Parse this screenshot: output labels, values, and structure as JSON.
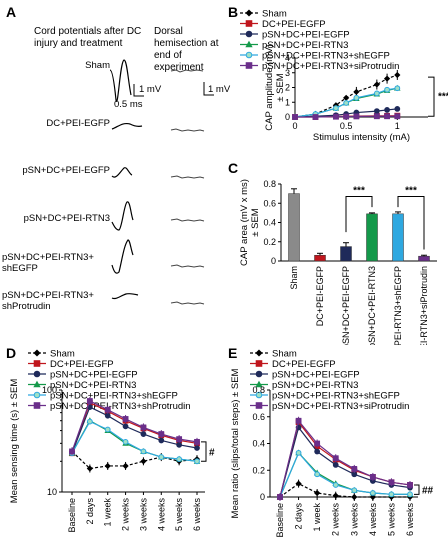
{
  "panelA": {
    "letter": "A",
    "col1_header": "Cord potentials after DC injury and treatment",
    "col2_header": "Dorsal hemisection at end of experiment",
    "scale_mv": "1 mV",
    "scale_ms": "0.5 ms",
    "rows": [
      "Sham",
      "DC+PEI-EGFP",
      "pSN+DC+PEI-EGFP",
      "pSN+DC+PEI-RTN3",
      "pSN+DC+PEI-RTN3+ shEGFP",
      "pSN+DC+PEI-RTN3+ shProtrudin"
    ]
  },
  "panelB": {
    "letter": "B"
  },
  "panelC": {
    "letter": "C"
  },
  "panelD": {
    "letter": "D"
  },
  "panelE": {
    "letter": "E"
  },
  "colors": {
    "sham": "#000000",
    "dc_egfp": "#c0161d",
    "psn_egfp": "#1f2a5a",
    "rtn3": "#14994a",
    "shegfp": "#2ea8e0",
    "shprot": "#6a2f8a"
  },
  "chart_data": [
    {
      "id": "B",
      "type": "line",
      "legend": [
        "Sham",
        "DC+PEI-EGFP",
        "pSN+DC+PEI-EGFP",
        "pSN+DC+PEI-RTN3",
        "pSN+DC+PEI-RTN3+shEGFP",
        "pSN+DC+PEI-RTN3+siProtrudin"
      ],
      "xlabel": "Stimulus intensity (mA)",
      "ylabel": "CAP amplitude (mV) ± SEM",
      "xlim": [
        0,
        1.3
      ],
      "ylim": [
        0,
        4
      ],
      "xticks": [
        "0",
        "0.5",
        "1"
      ],
      "yticks": [
        "0",
        "1",
        "2",
        "3",
        "4"
      ],
      "x": [
        0,
        0.2,
        0.4,
        0.5,
        0.6,
        0.8,
        0.9,
        1.0
      ],
      "series": [
        {
          "name": "Sham",
          "values": [
            0,
            0.2,
            0.8,
            1.3,
            1.7,
            2.2,
            2.6,
            2.85
          ]
        },
        {
          "name": "DC+PEI-EGFP",
          "values": [
            0,
            0,
            0.03,
            0.05,
            0.06,
            0.08,
            0.08,
            0.09
          ]
        },
        {
          "name": "pSN+DC+PEI-EGFP",
          "values": [
            0,
            0.05,
            0.12,
            0.2,
            0.3,
            0.4,
            0.48,
            0.55
          ]
        },
        {
          "name": "pSN+DC+PEI-RTN3",
          "values": [
            0,
            0.2,
            0.6,
            0.95,
            1.25,
            1.55,
            1.8,
            1.95
          ]
        },
        {
          "name": "pSN+DC+PEI-RTN3+shEGFP",
          "values": [
            0,
            0.2,
            0.6,
            0.95,
            1.3,
            1.6,
            1.85,
            1.95
          ]
        },
        {
          "name": "pSN+DC+PEI-RTN3+siProtrudin",
          "values": [
            0,
            0,
            0.02,
            0.03,
            0.04,
            0.05,
            0.05,
            0.05
          ]
        }
      ],
      "annotation": "***"
    },
    {
      "id": "C",
      "type": "bar",
      "ylabel": "CAP area (mV x ms) ± SEM",
      "ylim": [
        0,
        0.8
      ],
      "yticks": [
        "0",
        "0.2",
        "0.4",
        "0.6",
        "0.8"
      ],
      "categories": [
        "Sham",
        "DC+PEI-EGFP",
        "pSN+DC+PEI-EGFP",
        "pSN+DC+PEI-RTN3",
        "pSN+DC+PEI-RTN3+shEGFP",
        "pSN+DC+PEI-RTN3+siProtrudin"
      ],
      "values": [
        0.7,
        0.06,
        0.15,
        0.49,
        0.49,
        0.05
      ],
      "errors": [
        0.05,
        0.02,
        0.04,
        0.01,
        0.02,
        0.01
      ],
      "annotations": [
        "***",
        "***"
      ]
    },
    {
      "id": "D",
      "type": "line",
      "legend": [
        "Sham",
        "DC+PEI-EGFP",
        "pSN+DC+PEI-EGFP",
        "pSN+DC+PEI-RTN3",
        "pSN+DC+PEI-RTN3+shEGFP",
        "pSN+DC+PEI-RTN3+shProtrudin"
      ],
      "ylabel": "Mean sensing time (s) ± SEM",
      "yscale": "log",
      "ylim": [
        10,
        100
      ],
      "yticks": [
        "10",
        "100"
      ],
      "categories": [
        "Baseline",
        "2 days",
        "1 week",
        "2 weeks",
        "3 weeks",
        "4 weeks",
        "5 weeks",
        "6 weeks"
      ],
      "series": [
        {
          "name": "Sham",
          "values": [
            25,
            17,
            18,
            18,
            20,
            22,
            20,
            21
          ]
        },
        {
          "name": "DC+PEI-EGFP",
          "values": [
            24,
            75,
            62,
            50,
            42,
            36,
            32,
            30
          ]
        },
        {
          "name": "pSN+DC+PEI-EGFP",
          "values": [
            24,
            68,
            56,
            44,
            37,
            32,
            29,
            27
          ]
        },
        {
          "name": "pSN+DC+PEI-RTN3",
          "values": [
            24,
            50,
            40,
            30,
            25,
            22,
            21,
            20
          ]
        },
        {
          "name": "pSN+DC+PEI-RTN3+shEGFP",
          "values": [
            24,
            49,
            41,
            31,
            25,
            22,
            21,
            20
          ]
        },
        {
          "name": "pSN+DC+PEI-RTN3+shProtrudin",
          "values": [
            25,
            78,
            64,
            52,
            43,
            37,
            33,
            31
          ]
        }
      ],
      "annotation": "#"
    },
    {
      "id": "E",
      "type": "line",
      "legend": [
        "Sham",
        "DC+PEI-EGFP",
        "pSN+DC+PEI-EGFP",
        "pSN+DC+PEI-RTN3",
        "pSN+DC+PEI-RTN3+shEGFP",
        "pSN+DC+PEI-RTN3+siProtrudin"
      ],
      "ylabel": "Mean ratio (slips/total steps) ± SEM",
      "ylim": [
        0,
        0.8
      ],
      "yticks": [
        "0",
        "0.2",
        "0.4",
        "0.6",
        "0.8"
      ],
      "categories": [
        "Baseline",
        "2 days",
        "1 week",
        "2 weeks",
        "3 weeks",
        "4 weeks",
        "5 weeks",
        "6 weeks"
      ],
      "series": [
        {
          "name": "Sham",
          "values": [
            0.0,
            0.1,
            0.03,
            0.01,
            0.0,
            0.0,
            0.0,
            0.0
          ]
        },
        {
          "name": "DC+PEI-EGFP",
          "values": [
            0.0,
            0.56,
            0.38,
            0.28,
            0.2,
            0.15,
            0.11,
            0.09
          ]
        },
        {
          "name": "pSN+DC+PEI-EGFP",
          "values": [
            0.0,
            0.52,
            0.34,
            0.24,
            0.17,
            0.12,
            0.09,
            0.07
          ]
        },
        {
          "name": "pSN+DC+PEI-RTN3",
          "values": [
            0.0,
            0.33,
            0.18,
            0.1,
            0.05,
            0.03,
            0.02,
            0.02
          ]
        },
        {
          "name": "pSN+DC+PEI-RTN3+shEGFP",
          "values": [
            0.0,
            0.33,
            0.17,
            0.09,
            0.05,
            0.03,
            0.02,
            0.02
          ]
        },
        {
          "name": "pSN+DC+PEI-RTN3+siProtrudin",
          "values": [
            0.0,
            0.57,
            0.4,
            0.29,
            0.21,
            0.15,
            0.11,
            0.09
          ]
        }
      ],
      "annotation": "##"
    }
  ]
}
